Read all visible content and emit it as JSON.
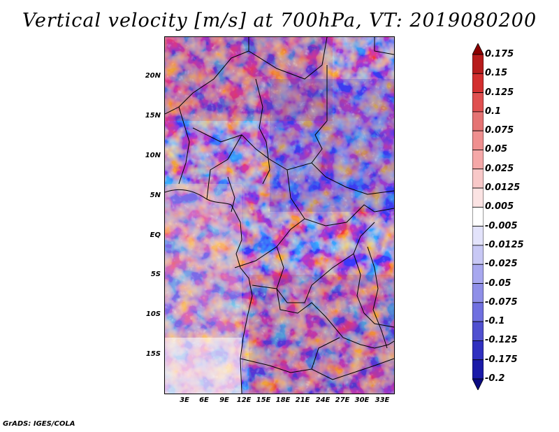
{
  "title": "Vertical velocity [m/s] at 700hPa, VT: 2019080200",
  "credit": "GrADS: IGES/COLA",
  "map": {
    "lat_labels": [
      "20N",
      "15N",
      "10N",
      "5N",
      "EQ",
      "5S",
      "10S",
      "15S"
    ],
    "lon_labels": [
      "3E",
      "6E",
      "9E",
      "12E",
      "15E",
      "18E",
      "21E",
      "24E",
      "27E",
      "30E",
      "33E"
    ]
  },
  "colorbar": {
    "labels": [
      "0.175",
      "0.15",
      "0.125",
      "0.1",
      "0.075",
      "0.05",
      "0.025",
      "0.0125",
      "0.005",
      "-0.005",
      "-0.0125",
      "-0.025",
      "-0.05",
      "-0.075",
      "-0.1",
      "-0.125",
      "-0.175",
      "-0.2"
    ],
    "colors": [
      "#8b0000",
      "#b71c1c",
      "#d32f2f",
      "#e05050",
      "#e57373",
      "#ef8f8f",
      "#f5a8a8",
      "#f8c8c8",
      "#fbe3e3",
      "#ffffff",
      "#e3e3fb",
      "#c8c8f5",
      "#a8a8ef",
      "#8f8fe8",
      "#7070e0",
      "#5050d0",
      "#3030c0",
      "#1a1aa8",
      "#0a0a80"
    ]
  }
}
